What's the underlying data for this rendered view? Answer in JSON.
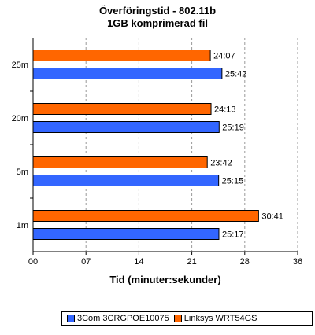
{
  "chart_data": {
    "type": "bar",
    "orientation": "horizontal",
    "title": "Överföringstid - 802.11b",
    "subtitle": "1GB komprimerad fil",
    "xlabel": "Tid (minuter:sekunder)",
    "ylabel": "",
    "categories": [
      "25m",
      "20m",
      "5m",
      "1m"
    ],
    "xlim": [
      0,
      36
    ],
    "x_ticks": [
      "00",
      "07",
      "14",
      "21",
      "28",
      "36"
    ],
    "grid": "vertical dashed",
    "legend_position": "bottom",
    "series": [
      {
        "name": "Linksys WRT54GS",
        "color": "#ff6600",
        "values": [
          24.117,
          24.217,
          23.7,
          30.683
        ],
        "labels": [
          "24:07",
          "24:13",
          "23:42",
          "30:41"
        ]
      },
      {
        "name": "3Com 3CRGPOE10075",
        "color": "#3366ff",
        "values": [
          25.7,
          25.317,
          25.25,
          25.283
        ],
        "labels": [
          "25:42",
          "25:19",
          "25:15",
          "25:17"
        ]
      }
    ],
    "legend_order": [
      "3Com 3CRGPOE10075",
      "Linksys WRT54GS"
    ]
  }
}
